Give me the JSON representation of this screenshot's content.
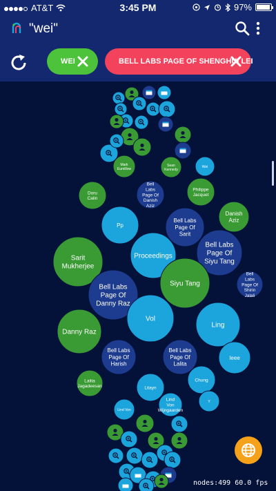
{
  "status_bar": {
    "carrier": "AT&T",
    "time": "3:45 PM",
    "battery_percent": "97%",
    "signal_bars_filled": 4
  },
  "app_bar": {
    "title": "\"wei\"",
    "logo_icon": "app-logo-icon",
    "search_icon": "search-icon",
    "menu_icon": "more-vert-icon"
  },
  "filters": {
    "refresh_icon": "refresh-icon",
    "chips": [
      {
        "label": "WEI",
        "color": "#4cc33b",
        "close_icon": "close-icon"
      },
      {
        "label": "BELL LABS PAGE OF  SHENGHUI LEI",
        "color": "#f3435c",
        "close_icon": "close-icon"
      }
    ]
  },
  "graph": {
    "colors": {
      "light": "#1ca4dc",
      "dark": "#1d3c8f",
      "green": "#3a9a33"
    },
    "nodes": [
      {
        "label": "",
        "kind": "light",
        "icon": "zoom"
      },
      {
        "label": "",
        "kind": "green",
        "icon": "person"
      },
      {
        "label": "",
        "kind": "dark",
        "icon": "book"
      },
      {
        "label": "",
        "kind": "light",
        "icon": "book"
      },
      {
        "label": "",
        "kind": "light",
        "icon": "zoom"
      },
      {
        "label": "",
        "kind": "light",
        "icon": "zoom"
      },
      {
        "label": "",
        "kind": "light",
        "icon": "zoom"
      },
      {
        "label": "",
        "kind": "light",
        "icon": "zoom"
      },
      {
        "label": "",
        "kind": "light",
        "icon": "zoom"
      },
      {
        "label": "",
        "kind": "green",
        "icon": "person"
      },
      {
        "label": "",
        "kind": "light",
        "icon": "zoom"
      },
      {
        "label": "",
        "kind": "dark",
        "icon": "book"
      },
      {
        "label": "",
        "kind": "green",
        "icon": "person"
      },
      {
        "label": "",
        "kind": "green",
        "icon": "person"
      },
      {
        "label": "",
        "kind": "light",
        "icon": "zoom"
      },
      {
        "label": "",
        "kind": "green",
        "icon": "person"
      },
      {
        "label": "",
        "kind": "dark",
        "icon": "book"
      },
      {
        "label": "",
        "kind": "light",
        "icon": "zoom"
      },
      {
        "label": "Mark Eumillow",
        "kind": "green",
        "icon": ""
      },
      {
        "label": "Sean Kennedy",
        "kind": "green",
        "icon": ""
      },
      {
        "label": "Wei",
        "kind": "light",
        "icon": ""
      },
      {
        "label": "Doru Calin",
        "kind": "green",
        "icon": ""
      },
      {
        "label": "Bell Labs Page Of Danish Aziz",
        "kind": "dark",
        "icon": ""
      },
      {
        "label": "Philippe Jacquet",
        "kind": "green",
        "icon": ""
      },
      {
        "label": "Danish Aziz",
        "kind": "green",
        "icon": ""
      },
      {
        "label": "Pp",
        "kind": "light",
        "icon": ""
      },
      {
        "label": "Bell Labs Page Of Sarit",
        "kind": "dark",
        "icon": ""
      },
      {
        "label": "Bell Labs Page Of Siyu Tang",
        "kind": "dark",
        "icon": ""
      },
      {
        "label": "Sarit Mukherjee",
        "kind": "green",
        "icon": ""
      },
      {
        "label": "Proceedings",
        "kind": "light",
        "icon": ""
      },
      {
        "label": "Siyu Tang",
        "kind": "green",
        "icon": ""
      },
      {
        "label": "Bell Labs Page Of Shirin Jalali",
        "kind": "dark",
        "icon": ""
      },
      {
        "label": "Bell Labs Page Of Danny Raz",
        "kind": "dark",
        "icon": ""
      },
      {
        "label": "Vol",
        "kind": "light",
        "icon": ""
      },
      {
        "label": "Ling",
        "kind": "light",
        "icon": ""
      },
      {
        "label": "Danny Raz",
        "kind": "green",
        "icon": ""
      },
      {
        "label": "Bell Labs Page Of Harish",
        "kind": "dark",
        "icon": ""
      },
      {
        "label": "Bell Labs Page Of Lalita",
        "kind": "dark",
        "icon": ""
      },
      {
        "label": "Ieee",
        "kind": "light",
        "icon": ""
      },
      {
        "label": "Chung",
        "kind": "light",
        "icon": ""
      },
      {
        "label": "Lalita Jagadeesan",
        "kind": "green",
        "icon": ""
      },
      {
        "label": "Litayn",
        "kind": "light",
        "icon": ""
      },
      {
        "label": "Y",
        "kind": "light",
        "icon": ""
      },
      {
        "label": "Lind Von Wijngaarden",
        "kind": "light",
        "icon": ""
      },
      {
        "label": "Lind Von",
        "kind": "light",
        "icon": ""
      },
      {
        "label": "",
        "kind": "green",
        "icon": "person"
      },
      {
        "label": "",
        "kind": "green",
        "icon": "person"
      },
      {
        "label": "",
        "kind": "light",
        "icon": "zoom"
      },
      {
        "label": "",
        "kind": "light",
        "icon": "zoom"
      },
      {
        "label": "",
        "kind": "green",
        "icon": "person"
      },
      {
        "label": "",
        "kind": "green",
        "icon": "person"
      },
      {
        "label": "",
        "kind": "light",
        "icon": "zoom"
      },
      {
        "label": "",
        "kind": "light",
        "icon": "zoom"
      },
      {
        "label": "",
        "kind": "light",
        "icon": "zoom"
      },
      {
        "label": "",
        "kind": "light",
        "icon": "zoom"
      },
      {
        "label": "",
        "kind": "light",
        "icon": "zoom"
      },
      {
        "label": "",
        "kind": "light",
        "icon": "zoom"
      },
      {
        "label": "",
        "kind": "light",
        "icon": "book"
      },
      {
        "label": "",
        "kind": "light",
        "icon": "zoom"
      },
      {
        "label": "",
        "kind": "dark",
        "icon": "book"
      },
      {
        "label": "",
        "kind": "light",
        "icon": "book"
      },
      {
        "label": "",
        "kind": "green",
        "icon": "person"
      },
      {
        "label": "",
        "kind": "light",
        "icon": "zoom"
      }
    ]
  },
  "fab_icon": "globe-icon",
  "footer": {
    "stats": "nodes:499  60.0 fps"
  }
}
